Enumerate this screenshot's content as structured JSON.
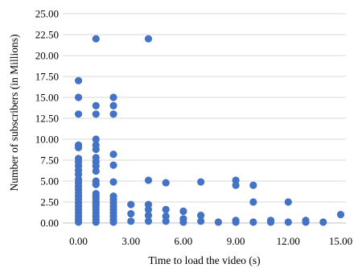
{
  "chart_data": {
    "type": "scatter",
    "xlabel": "Time to load the video (s)",
    "ylabel": "Number of subscribers  (in Millions)",
    "xlim": [
      -0.9,
      15.3
    ],
    "ylim": [
      0,
      25
    ],
    "x_ticks": [
      "0.00",
      "3.00",
      "6.00",
      "9.00",
      "12.00",
      "15.00"
    ],
    "x_tick_values": [
      0,
      3,
      6,
      9,
      12,
      15
    ],
    "y_ticks": [
      "0.00",
      "2.50",
      "5.00",
      "7.50",
      "10.00",
      "12.50",
      "15.00",
      "17.50",
      "20.00",
      "22.50",
      "25.00"
    ],
    "y_tick_values": [
      0,
      2.5,
      5,
      7.5,
      10,
      12.5,
      15,
      17.5,
      20,
      22.5,
      25
    ],
    "grid": "horizontal",
    "marker_color": "#4472c4",
    "series": [
      {
        "points": [
          [
            0,
            17.0
          ],
          [
            0,
            15.0
          ],
          [
            0,
            13.0
          ],
          [
            0,
            9.3
          ],
          [
            0,
            9.0
          ],
          [
            0,
            7.7
          ],
          [
            0,
            7.3
          ],
          [
            0,
            6.8
          ],
          [
            0,
            6.3
          ],
          [
            0,
            5.8
          ],
          [
            0,
            5.2
          ],
          [
            0,
            4.8
          ],
          [
            0,
            4.4
          ],
          [
            0,
            4.0
          ],
          [
            0,
            3.6
          ],
          [
            0,
            3.2
          ],
          [
            0,
            2.8
          ],
          [
            0,
            2.4
          ],
          [
            0,
            2.0
          ],
          [
            0,
            1.6
          ],
          [
            0,
            1.2
          ],
          [
            0,
            0.8
          ],
          [
            0,
            0.4
          ],
          [
            0,
            0.1
          ],
          [
            1,
            22.0
          ],
          [
            1,
            14.0
          ],
          [
            1,
            13.0
          ],
          [
            1,
            10.0
          ],
          [
            1,
            9.3
          ],
          [
            1,
            8.8
          ],
          [
            1,
            7.8
          ],
          [
            1,
            7.3
          ],
          [
            1,
            6.8
          ],
          [
            1,
            6.2
          ],
          [
            1,
            5.0
          ],
          [
            1,
            4.6
          ],
          [
            1,
            3.5
          ],
          [
            1,
            3.2
          ],
          [
            1,
            2.9
          ],
          [
            1,
            2.6
          ],
          [
            1,
            2.3
          ],
          [
            1,
            2.0
          ],
          [
            1,
            1.6
          ],
          [
            1,
            1.2
          ],
          [
            1,
            0.8
          ],
          [
            1,
            0.4
          ],
          [
            1,
            0.1
          ],
          [
            2,
            15.0
          ],
          [
            2,
            14.0
          ],
          [
            2,
            13.0
          ],
          [
            2,
            8.2
          ],
          [
            2,
            6.9
          ],
          [
            2,
            4.9
          ],
          [
            2,
            3.2
          ],
          [
            2,
            2.8
          ],
          [
            2,
            2.4
          ],
          [
            2,
            2.0
          ],
          [
            2,
            1.6
          ],
          [
            2,
            1.2
          ],
          [
            2,
            0.8
          ],
          [
            2,
            0.4
          ],
          [
            2,
            0.1
          ],
          [
            3,
            2.2
          ],
          [
            3,
            1.1
          ],
          [
            3,
            0.2
          ],
          [
            4,
            22.0
          ],
          [
            4,
            5.1
          ],
          [
            4,
            2.2
          ],
          [
            4,
            1.6
          ],
          [
            4,
            0.9
          ],
          [
            4,
            0.2
          ],
          [
            5,
            4.8
          ],
          [
            5,
            1.6
          ],
          [
            5,
            0.8
          ],
          [
            5,
            0.2
          ],
          [
            6,
            1.4
          ],
          [
            6,
            0.5
          ],
          [
            6,
            0.1
          ],
          [
            7,
            4.9
          ],
          [
            7,
            0.9
          ],
          [
            7,
            0.2
          ],
          [
            8,
            0.1
          ],
          [
            9,
            5.1
          ],
          [
            9,
            4.5
          ],
          [
            9,
            0.3
          ],
          [
            9,
            0.1
          ],
          [
            10,
            4.5
          ],
          [
            10,
            2.5
          ],
          [
            10,
            0.1
          ],
          [
            11,
            0.3
          ],
          [
            11,
            0.1
          ],
          [
            12,
            2.5
          ],
          [
            12,
            0.1
          ],
          [
            13,
            0.3
          ],
          [
            13,
            0.1
          ],
          [
            14,
            0.1
          ],
          [
            15,
            1.0
          ]
        ]
      }
    ]
  }
}
